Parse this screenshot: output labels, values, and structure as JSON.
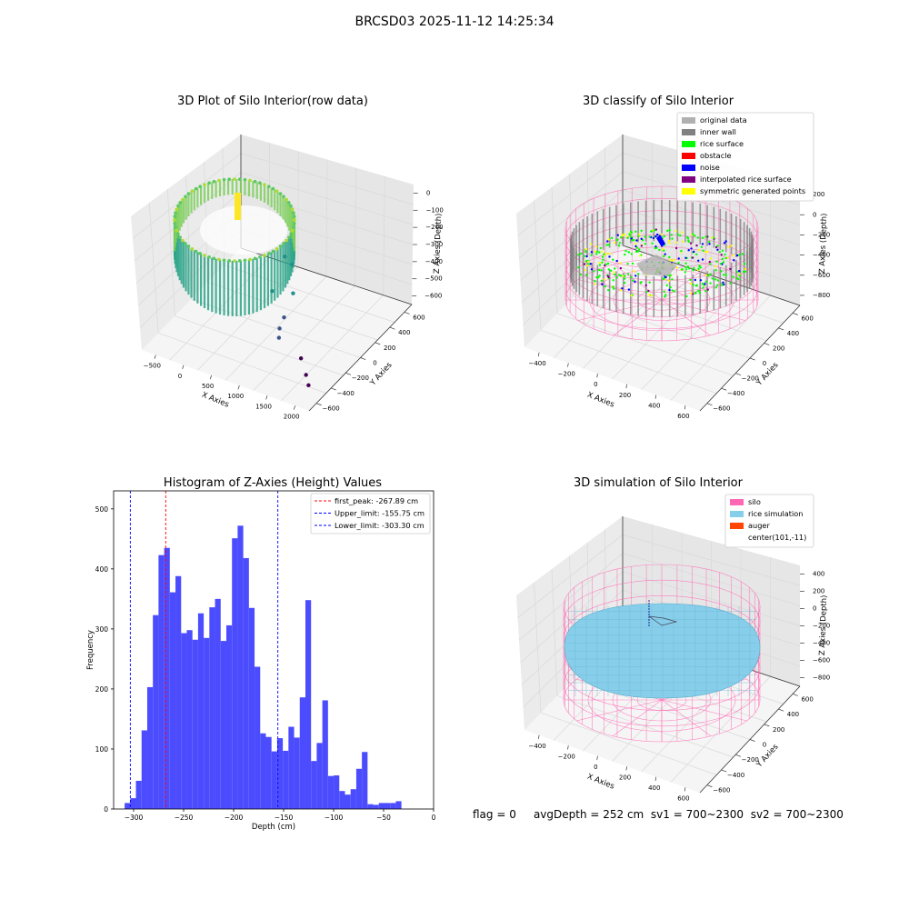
{
  "suptitle": "BRCSD03 2025-11-12 14:25:34",
  "footer": {
    "flag": "flag = 0",
    "avg_depth": "avgDepth = 252 cm",
    "sv1": "sv1 = 700~2300",
    "sv2": "sv2 = 700~2300"
  },
  "colors": {
    "histogram_bar": "#4c4cff",
    "first_peak_line": "#ff0000",
    "limit_lines": "#0000ff",
    "silo": "#ff69b4",
    "rice_simulation": "#87ceeb",
    "auger": "#ff4500",
    "panel_background": "#f2f2f2"
  },
  "chart_data": [
    {
      "type": "scatter",
      "projection": "3d",
      "title": "3D Plot of Silo Interior(row data)",
      "xlabel": "X Axies",
      "ylabel": "Y Axies",
      "zlabel": "Z Axies (Depth)",
      "xticks": [
        "−500",
        "0",
        "500",
        "1000",
        "1500",
        "2000"
      ],
      "yticks": [
        "−600",
        "−400",
        "−200",
        "0",
        "200",
        "400",
        "600"
      ],
      "zticks": [
        "−600",
        "−500",
        "−400",
        "−300",
        "−200",
        "−100",
        "0"
      ],
      "colormap": "viridis",
      "xlim": [
        -600,
        2050
      ],
      "ylim": [
        -650,
        650
      ],
      "zlim": [
        -620,
        20
      ],
      "outlier_points": [
        {
          "x": 700,
          "y": 150,
          "z": -330
        },
        {
          "x": 850,
          "y": 120,
          "z": -340
        },
        {
          "x": 800,
          "y": -100,
          "z": -390
        },
        {
          "x": 1000,
          "y": 10,
          "z": -420
        },
        {
          "x": 1050,
          "y": -150,
          "z": -470
        },
        {
          "x": 1100,
          "y": -250,
          "z": -480
        },
        {
          "x": 1150,
          "y": -300,
          "z": -500
        },
        {
          "x": 1500,
          "y": -300,
          "z": -560
        },
        {
          "x": 1700,
          "y": -400,
          "z": -580
        },
        {
          "x": 1800,
          "y": -450,
          "z": -600
        }
      ]
    },
    {
      "type": "scatter",
      "projection": "3d",
      "title": "3D classify of Silo Interior",
      "xlabel": "X Axies",
      "ylabel": "Y Axies",
      "zlabel": "Z Axies (Depth)",
      "xticks": [
        "−400",
        "−200",
        "0",
        "200",
        "400",
        "600"
      ],
      "yticks": [
        "−600",
        "−400",
        "−200",
        "0",
        "200",
        "400",
        "600"
      ],
      "zticks": [
        "−800",
        "−600",
        "−400",
        "−200",
        "0",
        "200"
      ],
      "legend_position": "upper right",
      "legend": [
        {
          "label": "original data",
          "color": "#b0b0b0"
        },
        {
          "label": "inner wall",
          "color": "#808080"
        },
        {
          "label": "rice surface",
          "color": "#00ff00"
        },
        {
          "label": "obstacle",
          "color": "#ff0000"
        },
        {
          "label": "noise",
          "color": "#0000ff"
        },
        {
          "label": "interpolated rice surface",
          "color": "#800080"
        },
        {
          "label": "symmetric generated points",
          "color": "#ffff00"
        }
      ]
    },
    {
      "type": "bar",
      "title": "Histogram of Z-Axies (Height) Values",
      "xlabel": "Depth (cm)",
      "ylabel": "Frequency",
      "xlim": [
        -320,
        0
      ],
      "ylim": [
        0,
        530
      ],
      "xticks": [
        -300,
        -250,
        -200,
        -150,
        -100,
        -50,
        0
      ],
      "xtick_labels": [
        "−300",
        "−250",
        "−200",
        "−150",
        "−100",
        "−50",
        "0"
      ],
      "yticks": [
        0,
        100,
        200,
        300,
        400,
        500
      ],
      "bin_start": -309,
      "bin_width": 5.65,
      "values": [
        10,
        18,
        47,
        131,
        203,
        323,
        423,
        435,
        361,
        388,
        293,
        298,
        282,
        326,
        285,
        336,
        350,
        280,
        306,
        451,
        472,
        418,
        335,
        237,
        126,
        120,
        96,
        118,
        97,
        137,
        119,
        186,
        348,
        80,
        110,
        181,
        55,
        56,
        30,
        24,
        33,
        67,
        95,
        8,
        7,
        10,
        10,
        10,
        13
      ],
      "legend_position": "upper right",
      "vlines": [
        {
          "label": "first_peak: -267.89 cm",
          "x": -267.89,
          "color": "#ff0000"
        },
        {
          "label": "Upper_limit: -155.75 cm",
          "x": -155.75,
          "color": "#0000ff"
        },
        {
          "label": "Lower_limit: -303.30 cm",
          "x": -303.3,
          "color": "#0000ff"
        }
      ]
    },
    {
      "type": "area",
      "projection": "3d",
      "title": "3D simulation of Silo Interior",
      "xlabel": "X Axies",
      "ylabel": "Y Axies",
      "zlabel": "Z Axies (Depth)",
      "xticks": [
        "−400",
        "−200",
        "0",
        "200",
        "400",
        "600"
      ],
      "yticks": [
        "−600",
        "−400",
        "−200",
        "0",
        "200",
        "400",
        "600"
      ],
      "zticks": [
        "−800",
        "−600",
        "−400",
        "−200",
        "0",
        "200",
        "400"
      ],
      "legend_position": "upper right",
      "legend": [
        {
          "label": "silo",
          "color": "#ff69b4"
        },
        {
          "label": "rice simulation",
          "color": "#87ceeb"
        },
        {
          "label": "auger",
          "color": "#ff4500"
        },
        {
          "label": "center(101,-11)",
          "color": ""
        }
      ]
    }
  ]
}
